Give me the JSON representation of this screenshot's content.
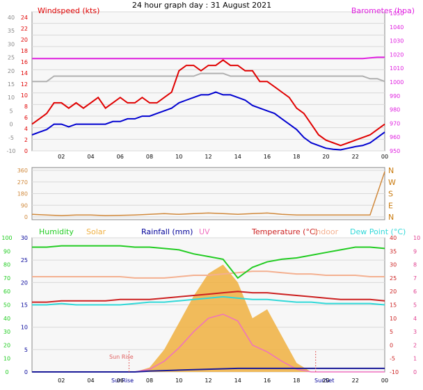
{
  "title": "24 hour graph day : 31 August 2021",
  "colors": {
    "windspeed": "#e00000",
    "gust_avg": "#0000d0",
    "gust_grey": "#b0b0b0",
    "barometer": "#e020e0",
    "direction": "#d0883a",
    "humidity": "#22cc22",
    "solar": "#f0b040",
    "rainfall": "#1a1a99",
    "uv": "#f070c0",
    "temperature": "#cc2020",
    "indoor": "#f4b090",
    "dewpoint": "#30d8d8",
    "axis_green": "#20cc20",
    "axis_blue": "#000099",
    "axis_pink": "#e04090",
    "sun_marker": "#e06060"
  },
  "x_ticks": [
    "02",
    "04",
    "06",
    "08",
    "10",
    "12",
    "14",
    "16",
    "18",
    "20",
    "22",
    "00"
  ],
  "chart_data": [
    {
      "type": "line",
      "panel": "wind",
      "left_axis_label": "Windspeed (kts)",
      "right_axis_label": "Barometer (hpa)",
      "left_ticks": [
        "24",
        "22",
        "20",
        "18",
        "16",
        "14",
        "12",
        "10",
        "8",
        "6",
        "4",
        "2",
        "0"
      ],
      "far_left_ticks": [
        "40",
        "35",
        "30",
        "25",
        "20",
        "15",
        "10",
        "5",
        "0",
        "-5",
        "-10"
      ],
      "right_ticks": [
        "1050",
        "1040",
        "1030",
        "1020",
        "1010",
        "1000",
        "990",
        "980",
        "970",
        "960",
        "950"
      ],
      "ylim_left": [
        0,
        25
      ],
      "ylim_right": [
        950,
        1050
      ],
      "x_hours": [
        0,
        0.5,
        1,
        1.5,
        2,
        2.5,
        3,
        3.5,
        4,
        4.5,
        5,
        5.5,
        6,
        6.5,
        7,
        7.5,
        8,
        8.5,
        9,
        9.5,
        10,
        10.5,
        11,
        11.5,
        12,
        12.5,
        13,
        13.5,
        14,
        14.5,
        15,
        15.5,
        16,
        16.5,
        17,
        17.5,
        18,
        18.5,
        19,
        19.5,
        20,
        20.5,
        21,
        21.5,
        22,
        22.5,
        23,
        23.5,
        24
      ],
      "series": [
        {
          "name": "Windspeed",
          "values": [
            5,
            6,
            7,
            9,
            9,
            8,
            9,
            8,
            9,
            10,
            8,
            9,
            10,
            9,
            9,
            10,
            9,
            9,
            10,
            11,
            15,
            16,
            16,
            15,
            16,
            16,
            17,
            16,
            16,
            15,
            15,
            13,
            13,
            12,
            11,
            10,
            8,
            7,
            5,
            3,
            2,
            1.5,
            1,
            1.5,
            2,
            2.5,
            3,
            4,
            5
          ]
        },
        {
          "name": "Gust average",
          "values": [
            3,
            3.5,
            4,
            5,
            5,
            4.5,
            5,
            5,
            5,
            5,
            5,
            5.5,
            5.5,
            6,
            6,
            6.5,
            6.5,
            7,
            7.5,
            8,
            9,
            9.5,
            10,
            10.5,
            10.5,
            11,
            10.5,
            10.5,
            10,
            9.5,
            8.5,
            8,
            7.5,
            7,
            6,
            5,
            4,
            2.5,
            1.5,
            1,
            0.5,
            0.3,
            0.2,
            0.5,
            0.8,
            1,
            1.5,
            2.5,
            3.5
          ]
        },
        {
          "name": "Grey",
          "values": [
            null,
            null,
            null,
            null,
            null,
            null,
            null,
            null,
            null,
            null,
            null,
            null,
            null,
            null,
            null,
            null,
            null,
            null,
            null,
            null,
            null,
            null,
            null,
            null,
            null,
            null,
            null,
            null,
            null,
            null,
            null,
            null,
            null,
            null,
            null,
            null,
            null,
            null,
            null,
            null,
            null,
            null,
            null,
            null,
            null,
            null,
            null,
            null,
            null
          ]
        },
        {
          "name": "Barometer",
          "values": [
            1017,
            1017,
            1017,
            1017,
            1017,
            1017,
            1017,
            1017,
            1017,
            1017,
            1017,
            1017,
            1017,
            1017,
            1017,
            1017,
            1017,
            1017,
            1017,
            1017,
            1017,
            1017,
            1017,
            1017,
            1017,
            1017,
            1017,
            1017,
            1017,
            1017,
            1017,
            1017,
            1017,
            1017,
            1017,
            1017,
            1017,
            1017,
            1017,
            1017,
            1017,
            1017,
            1017,
            1017,
            1017,
            1017,
            1017.5,
            1018,
            1018
          ]
        }
      ],
      "grey_values": [
        13,
        13,
        13,
        14,
        14,
        14,
        14,
        14,
        14,
        14,
        14,
        14,
        14,
        14,
        14,
        14,
        14,
        14,
        14,
        14,
        14,
        14,
        14,
        14.5,
        14.5,
        14.5,
        14.5,
        14,
        14,
        14,
        14,
        14,
        14,
        14,
        14,
        14,
        14,
        14,
        14,
        14,
        14,
        14,
        14,
        14,
        14,
        14,
        13.5,
        13.5,
        13
      ]
    },
    {
      "type": "line",
      "panel": "direction",
      "left_ticks": [
        "360",
        "270",
        "180",
        "90",
        "0"
      ],
      "right_labels": [
        "N",
        "W",
        "S",
        "E",
        "N"
      ],
      "ylim": [
        0,
        360
      ],
      "x_hours": [
        0,
        1,
        2,
        3,
        4,
        5,
        6,
        7,
        8,
        9,
        10,
        11,
        12,
        13,
        14,
        15,
        16,
        17,
        18,
        19,
        20,
        21,
        22,
        23,
        24
      ],
      "series": [
        {
          "name": "Wind direction",
          "values": [
            20,
            15,
            10,
            15,
            15,
            10,
            12,
            15,
            20,
            25,
            20,
            25,
            30,
            25,
            20,
            25,
            30,
            20,
            15,
            15,
            15,
            15,
            15,
            15,
            350
          ]
        }
      ]
    },
    {
      "type": "line",
      "panel": "multi",
      "legend": [
        "Humidity",
        "Solar",
        "Rainfall (mm)",
        "UV",
        "Temperature (°C)",
        "Indoor",
        "Dew Point (°C)"
      ],
      "humidity_ticks": [
        "100",
        "90",
        "80",
        "70",
        "60",
        "50",
        "40",
        "30",
        "20",
        "10",
        "0"
      ],
      "rain_ticks": [
        "30",
        "25",
        "20",
        "15",
        "10",
        "5",
        "0"
      ],
      "temp_ticks": [
        "40",
        "35",
        "30",
        "25",
        "20",
        "15",
        "10",
        "5",
        "0",
        "-5",
        "-10"
      ],
      "uv_ticks": [
        "10",
        "9",
        "8",
        "7",
        "6",
        "5",
        "4",
        "3",
        "2",
        "1",
        "0"
      ],
      "annotations": [
        "Sun Rise",
        "SunRise",
        "SunSet"
      ],
      "x_hours": [
        0,
        1,
        2,
        3,
        4,
        5,
        6,
        7,
        8,
        9,
        10,
        11,
        12,
        13,
        14,
        15,
        16,
        17,
        18,
        19,
        20,
        21,
        22,
        23,
        24
      ],
      "series": [
        {
          "name": "Humidity",
          "values": [
            93,
            93,
            94,
            94,
            94,
            94,
            94,
            93,
            93,
            92,
            91,
            88,
            86,
            84,
            70,
            78,
            82,
            84,
            85,
            87,
            89,
            91,
            93,
            93,
            92
          ]
        },
        {
          "name": "Temperature (°C)",
          "values": [
            16,
            16,
            16.5,
            16.5,
            16.5,
            16.5,
            17,
            17,
            17,
            17.5,
            18,
            18.5,
            19,
            19.5,
            20,
            19.5,
            19.5,
            19,
            18.5,
            18,
            17.5,
            17,
            17,
            17,
            16.5
          ]
        },
        {
          "name": "Dew Point (°C)",
          "values": [
            15,
            15,
            15.5,
            15,
            15,
            15,
            15,
            15.5,
            16,
            16,
            16.5,
            17,
            17.5,
            18,
            17.5,
            17,
            17,
            16.5,
            16,
            16,
            15.5,
            15.5,
            15.5,
            15.5,
            15
          ]
        },
        {
          "name": "Indoor",
          "values": [
            25.5,
            25.5,
            25.5,
            25.5,
            25.5,
            25.5,
            25.5,
            25,
            25,
            25,
            25.5,
            26,
            26,
            26.5,
            27,
            27.5,
            27.5,
            27,
            26.5,
            26.5,
            26,
            26,
            26,
            25.5,
            25.5
          ]
        },
        {
          "name": "Solar",
          "values": [
            0,
            0,
            0,
            0,
            0,
            0,
            0,
            0,
            1,
            5,
            11,
            17,
            22,
            24,
            20,
            12,
            14,
            8,
            2,
            0,
            0,
            0,
            0,
            0,
            0
          ]
        },
        {
          "name": "UV",
          "values": [
            0,
            0,
            0,
            0,
            0,
            0,
            0,
            0,
            0.2,
            0.8,
            1.8,
            3,
            4,
            4.3,
            3.8,
            2,
            1.5,
            0.8,
            0.2,
            0,
            0,
            0,
            0,
            0,
            0
          ]
        },
        {
          "name": "Rainfall (mm)",
          "values": [
            0,
            0,
            0,
            0,
            0,
            0,
            0,
            0,
            0.2,
            0.3,
            0.4,
            0.5,
            0.6,
            0.7,
            0.8,
            0.8,
            0.8,
            0.8,
            0.8,
            0.8,
            0.8,
            0.8,
            0.8,
            0.8,
            0.8
          ]
        }
      ]
    }
  ]
}
